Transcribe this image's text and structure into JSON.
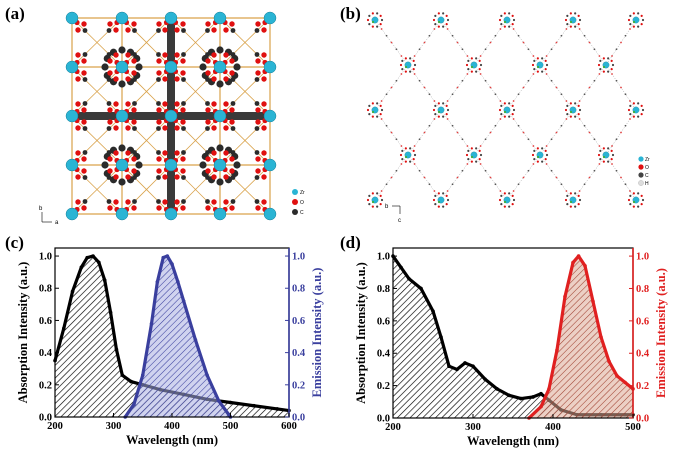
{
  "panels": {
    "a": {
      "label": "(a)",
      "legend": [
        {
          "symbol": "Zr",
          "color": "#2ab4d4"
        },
        {
          "symbol": "O",
          "color": "#e01010"
        },
        {
          "symbol": "C",
          "color": "#2b2b2b"
        }
      ],
      "axes": {
        "vertical": "b",
        "horizontal": "a"
      }
    },
    "b": {
      "label": "(b)",
      "legend": [
        {
          "symbol": "Zr",
          "color": "#2ab4d4"
        },
        {
          "symbol": "O",
          "color": "#e01010"
        },
        {
          "symbol": "C",
          "color": "#444444"
        },
        {
          "symbol": "H",
          "color": "#dddddd"
        }
      ],
      "axes": {
        "horizontal": "b",
        "vertical": "c"
      }
    },
    "c": {
      "label": "(c)"
    },
    "d": {
      "label": "(d)"
    }
  },
  "chart_data": [
    {
      "panel": "c",
      "type": "area",
      "xlabel": "Wavelength (nm)",
      "ylabel_left": "Absorption Intensity (a.u.)",
      "ylabel_right": "Emission Intensity (a.u.)",
      "xlim": [
        200,
        600
      ],
      "ylim_left": [
        0.0,
        1.05
      ],
      "ylim_right": [
        0.0,
        1.05
      ],
      "x_ticks": [
        "200",
        "300",
        "400",
        "500",
        "600"
      ],
      "y_ticks_left": [
        "0.0",
        "0.2",
        "0.4",
        "0.6",
        "0.8",
        "1.0"
      ],
      "y_ticks_right": [
        "0.0",
        "0.2",
        "0.4",
        "0.6",
        "0.8",
        "1.0"
      ],
      "colors": {
        "left_axis": "#000000",
        "right_axis": "#3a3f9e",
        "absorption": "#000000",
        "emission": "#3a3f9e"
      },
      "series": [
        {
          "axis": "left",
          "color": "#000000",
          "x": [
            200,
            215,
            230,
            245,
            255,
            265,
            275,
            285,
            295,
            305,
            315,
            330,
            350,
            380,
            420,
            460,
            500,
            540,
            580,
            600
          ],
          "y": [
            0.35,
            0.55,
            0.78,
            0.93,
            0.99,
            1.0,
            0.96,
            0.85,
            0.65,
            0.42,
            0.26,
            0.22,
            0.2,
            0.17,
            0.14,
            0.11,
            0.09,
            0.07,
            0.05,
            0.04
          ]
        },
        {
          "axis": "right",
          "color": "#3a3f9e",
          "x": [
            320,
            335,
            350,
            365,
            375,
            385,
            392,
            400,
            410,
            420,
            440,
            460,
            480,
            500
          ],
          "y": [
            0.0,
            0.08,
            0.26,
            0.58,
            0.84,
            0.99,
            1.0,
            0.95,
            0.84,
            0.72,
            0.48,
            0.26,
            0.1,
            0.0
          ]
        }
      ]
    },
    {
      "panel": "d",
      "type": "area",
      "xlabel": "Wavelength (nm)",
      "ylabel_left": "Absorption Intensity (a.u.)",
      "ylabel_right": "Emission Intensity (a.u.)",
      "xlim": [
        200,
        500
      ],
      "ylim_left": [
        0.0,
        1.05
      ],
      "ylim_right": [
        0.0,
        1.05
      ],
      "x_ticks": [
        "200",
        "300",
        "400",
        "500"
      ],
      "y_ticks_left": [
        "0.0",
        "0.2",
        "0.4",
        "0.6",
        "0.8",
        "1.0"
      ],
      "y_ticks_right": [
        "0.0",
        "0.2",
        "0.4",
        "0.6",
        "0.8",
        "1.0"
      ],
      "colors": {
        "left_axis": "#000000",
        "right_axis": "#e02020",
        "absorption": "#000000",
        "emission": "#e02020"
      },
      "series": [
        {
          "axis": "left",
          "color": "#000000",
          "x": [
            200,
            210,
            220,
            235,
            250,
            260,
            270,
            280,
            290,
            300,
            315,
            330,
            345,
            360,
            375,
            385,
            395,
            410,
            430,
            460,
            490,
            500
          ],
          "y": [
            1.0,
            0.93,
            0.86,
            0.8,
            0.66,
            0.5,
            0.32,
            0.3,
            0.34,
            0.32,
            0.24,
            0.18,
            0.14,
            0.12,
            0.13,
            0.15,
            0.11,
            0.05,
            0.02,
            0.02,
            0.02,
            0.02
          ]
        },
        {
          "axis": "right",
          "color": "#e02020",
          "x": [
            370,
            385,
            395,
            405,
            415,
            425,
            432,
            440,
            450,
            460,
            470,
            480,
            490,
            500
          ],
          "y": [
            0.0,
            0.07,
            0.18,
            0.42,
            0.75,
            0.96,
            1.0,
            0.94,
            0.72,
            0.5,
            0.35,
            0.26,
            0.22,
            0.18
          ]
        }
      ]
    }
  ]
}
